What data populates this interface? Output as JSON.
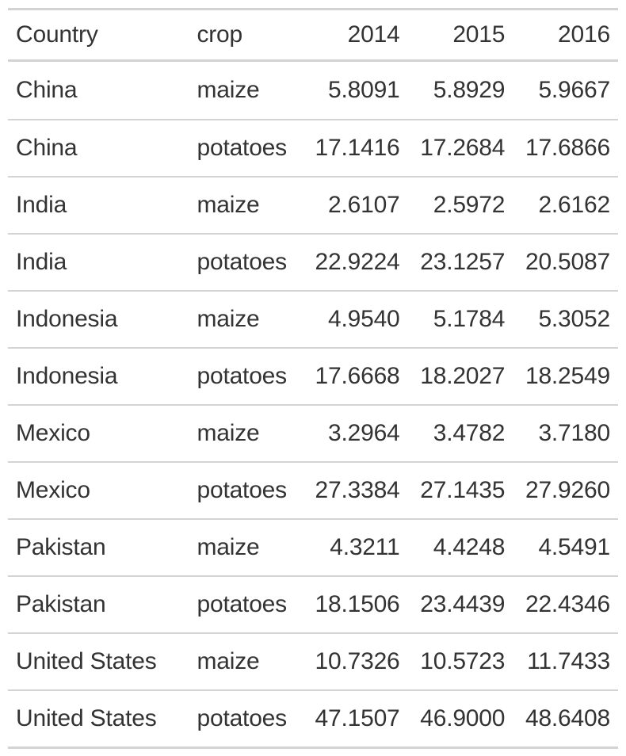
{
  "table": {
    "headers": [
      "Country",
      "crop",
      "2014",
      "2015",
      "2016"
    ],
    "rows": [
      [
        "China",
        "maize",
        "5.8091",
        "5.8929",
        "5.9667"
      ],
      [
        "China",
        "potatoes",
        "17.1416",
        "17.2684",
        "17.6866"
      ],
      [
        "India",
        "maize",
        "2.6107",
        "2.5972",
        "2.6162"
      ],
      [
        "India",
        "potatoes",
        "22.9224",
        "23.1257",
        "20.5087"
      ],
      [
        "Indonesia",
        "maize",
        "4.9540",
        "5.1784",
        "5.3052"
      ],
      [
        "Indonesia",
        "potatoes",
        "17.6668",
        "18.2027",
        "18.2549"
      ],
      [
        "Mexico",
        "maize",
        "3.2964",
        "3.4782",
        "3.7180"
      ],
      [
        "Mexico",
        "potatoes",
        "27.3384",
        "27.1435",
        "27.9260"
      ],
      [
        "Pakistan",
        "maize",
        "4.3211",
        "4.4248",
        "4.5491"
      ],
      [
        "Pakistan",
        "potatoes",
        "18.1506",
        "23.4439",
        "22.4346"
      ],
      [
        "United States",
        "maize",
        "10.7326",
        "10.5723",
        "11.7433"
      ],
      [
        "United States",
        "potatoes",
        "47.1507",
        "46.9000",
        "48.6408"
      ]
    ]
  }
}
